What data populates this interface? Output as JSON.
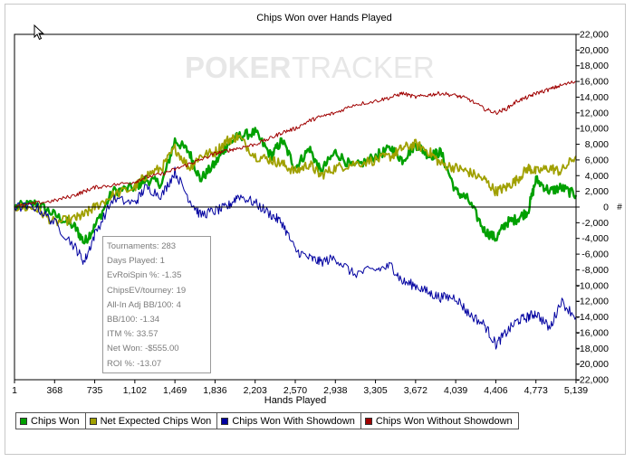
{
  "watermark": {
    "part1": "POKER",
    "part2": "TRACKER"
  },
  "stats": [
    "Tournaments: 283",
    "Days Played: 1",
    "EvRoiSpin %: -1.35",
    "ChipsEV/tourney: 19",
    "All-In Adj BB/100: 4",
    "BB/100: -1.34",
    "ITM %: 33.57",
    "Net Won: -$555.00",
    "ROI %: -13.07"
  ],
  "chart_data": {
    "type": "line",
    "title": "Chips Won over Hands Played",
    "xlabel": "Hands Played",
    "ylabel": "#",
    "xlim": [
      1,
      5139
    ],
    "ylim": [
      -22000,
      22000
    ],
    "x_ticks": [
      "1",
      "368",
      "735",
      "1,102",
      "1,469",
      "1,836",
      "2,203",
      "2,570",
      "2,938",
      "3,305",
      "3,672",
      "4,039",
      "4,406",
      "4,773",
      "5,139"
    ],
    "y_ticks": [
      "22,000",
      "20,000",
      "18,000",
      "16,000",
      "14,000",
      "12,000",
      "10,000",
      "8,000",
      "6,000",
      "4,000",
      "2,000",
      "0",
      "-2,000",
      "-4,000",
      "-6,000",
      "-8,000",
      "-10,000",
      "-12,000",
      "-14,000",
      "-16,000",
      "-18,000",
      "-20,000",
      "-22,000"
    ],
    "grid": false,
    "legend_position": "bottom-left",
    "x": [
      1,
      200,
      368,
      550,
      640,
      735,
      900,
      1102,
      1200,
      1350,
      1469,
      1600,
      1700,
      1836,
      1950,
      2050,
      2203,
      2350,
      2450,
      2570,
      2700,
      2800,
      2938,
      3100,
      3305,
      3450,
      3550,
      3672,
      3800,
      3900,
      4039,
      4150,
      4300,
      4406,
      4500,
      4600,
      4700,
      4773,
      4900,
      5000,
      5139
    ],
    "series": [
      {
        "name": "Chips Won",
        "color": "#00a000",
        "values": [
          0,
          500,
          -1000,
          -2500,
          -4500,
          -2500,
          2000,
          2500,
          3500,
          3000,
          8500,
          7000,
          3500,
          5500,
          8000,
          9000,
          9500,
          6500,
          8500,
          5000,
          7500,
          4500,
          7000,
          5000,
          6500,
          7500,
          6000,
          8000,
          6500,
          7000,
          2000,
          1000,
          -3000,
          -4000,
          -2000,
          -1500,
          -500,
          3500,
          2000,
          2500,
          1500
        ]
      },
      {
        "name": "Net Expected Chips Won",
        "color": "#a0a000",
        "values": [
          0,
          -200,
          -2000,
          -1500,
          -1000,
          0,
          1500,
          2500,
          4000,
          5000,
          7500,
          5000,
          6500,
          7000,
          8500,
          9000,
          6500,
          6000,
          5500,
          4500,
          5500,
          4000,
          5000,
          5500,
          6000,
          6500,
          7500,
          8000,
          7000,
          5500,
          5000,
          4500,
          3500,
          2000,
          2500,
          3500,
          5000,
          4500,
          5000,
          4500,
          6500
        ]
      },
      {
        "name": "Chips Won With Showdown",
        "color": "#0000a0",
        "values": [
          0,
          0,
          -2000,
          -5000,
          -7000,
          -3500,
          1000,
          500,
          2500,
          1500,
          4500,
          1000,
          -1000,
          -500,
          0,
          1500,
          500,
          -1000,
          -2000,
          -5500,
          -6500,
          -7000,
          -6500,
          -8500,
          -8000,
          -7500,
          -9500,
          -10000,
          -11000,
          -11500,
          -11500,
          -13500,
          -15000,
          -17500,
          -16000,
          -14500,
          -14000,
          -13500,
          -15500,
          -12000,
          -14000
        ]
      },
      {
        "name": "Chips Won Without Showdown",
        "color": "#a00000",
        "values": [
          0,
          500,
          800,
          1500,
          2000,
          2500,
          2800,
          3200,
          3800,
          4200,
          4800,
          5500,
          6000,
          6800,
          7200,
          7500,
          8000,
          8800,
          9500,
          10000,
          11000,
          11500,
          12000,
          13000,
          13500,
          14000,
          14500,
          14000,
          14300,
          14500,
          14200,
          13800,
          12500,
          12000,
          12500,
          13500,
          14000,
          14500,
          15000,
          15500,
          16000
        ]
      }
    ]
  }
}
